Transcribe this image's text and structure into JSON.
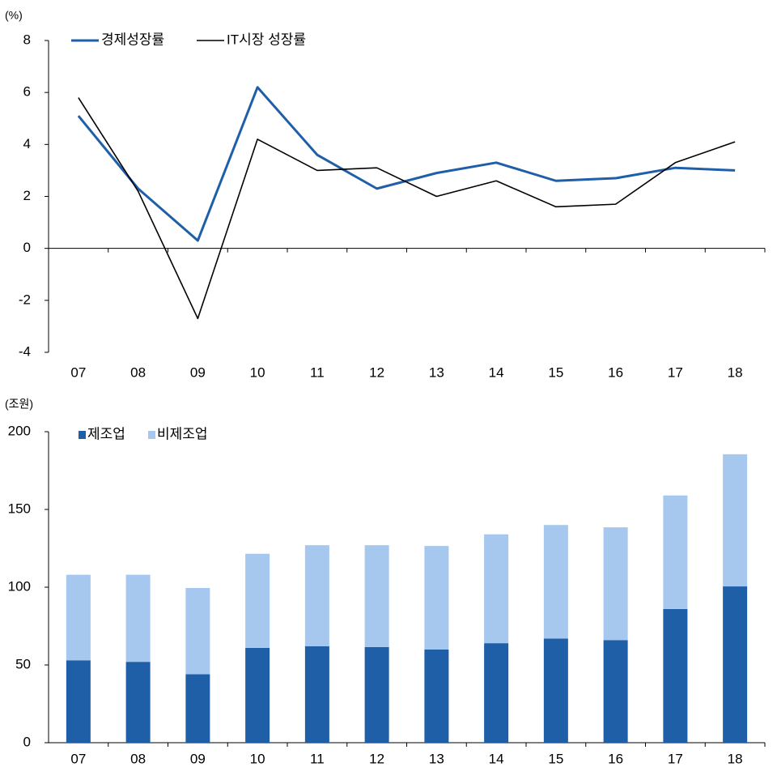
{
  "chart_data": [
    {
      "type": "line",
      "y_label": "(%)",
      "categories": [
        "07",
        "08",
        "09",
        "10",
        "11",
        "12",
        "13",
        "14",
        "15",
        "16",
        "17",
        "18"
      ],
      "series": [
        {
          "name": "경제성장률",
          "color": "#1f5fa8",
          "values": [
            5.1,
            2.3,
            0.3,
            6.2,
            3.6,
            2.3,
            2.9,
            3.3,
            2.6,
            2.7,
            3.1,
            3.0
          ]
        },
        {
          "name": "IT시장 성장률",
          "color": "#000000",
          "values": [
            5.8,
            2.2,
            -2.7,
            4.2,
            3.0,
            3.1,
            2.0,
            2.6,
            1.6,
            1.7,
            3.3,
            4.1
          ]
        }
      ],
      "ylim": [
        -4,
        8
      ],
      "yticks": [
        -4,
        -2,
        0,
        2,
        4,
        6,
        8
      ]
    },
    {
      "type": "bar",
      "stacked": true,
      "y_label": "(조원)",
      "categories": [
        "07",
        "08",
        "09",
        "10",
        "11",
        "12",
        "13",
        "14",
        "15",
        "16",
        "17",
        "18"
      ],
      "series": [
        {
          "name": "제조업",
          "color": "#1f5fa8",
          "values": [
            53,
            52,
            44,
            61,
            62,
            61.5,
            60,
            64,
            67,
            66,
            86,
            100.5
          ]
        },
        {
          "name": "비제조업",
          "color": "#a6c8ee",
          "values": [
            55,
            56,
            55.5,
            60.5,
            65,
            65.5,
            66.5,
            70,
            73,
            72.5,
            73,
            85
          ]
        }
      ],
      "ylim": [
        0,
        200
      ],
      "yticks": [
        0,
        50,
        100,
        150,
        200
      ]
    }
  ]
}
